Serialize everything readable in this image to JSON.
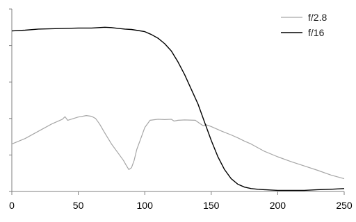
{
  "chart_data": {
    "type": "line",
    "title": "",
    "xlabel": "",
    "ylabel": "",
    "xlim": [
      0,
      250
    ],
    "ylim": [
      0,
      5
    ],
    "x_ticks": [
      0,
      50,
      100,
      150,
      200,
      250
    ],
    "x_tick_labels": [
      "0",
      "50",
      "100",
      "150",
      "200",
      "250"
    ],
    "y_ticks": [
      0,
      1,
      2,
      3,
      4,
      5
    ],
    "y_tick_labels_shown": false,
    "grid": false,
    "legend_position": "top-right",
    "series": [
      {
        "name": "f/2.8",
        "color": "#a6a6a6",
        "x": [
          0,
          10,
          20,
          30,
          38,
          40,
          42,
          50,
          56,
          60,
          63,
          66,
          70,
          75,
          80,
          84,
          86,
          88,
          90,
          92,
          94,
          97,
          100,
          104,
          110,
          115,
          120,
          122,
          125,
          130,
          138,
          142,
          144,
          146,
          150,
          158,
          165,
          170,
          175,
          180,
          185,
          190,
          200,
          210,
          220,
          230,
          240,
          250
        ],
        "y": [
          1.3,
          1.45,
          1.65,
          1.85,
          1.98,
          2.05,
          1.95,
          2.04,
          2.08,
          2.06,
          2.0,
          1.85,
          1.6,
          1.3,
          1.05,
          0.85,
          0.72,
          0.6,
          0.65,
          0.85,
          1.15,
          1.45,
          1.75,
          1.95,
          1.98,
          1.97,
          1.98,
          1.93,
          1.95,
          1.96,
          1.95,
          1.85,
          1.8,
          1.83,
          1.78,
          1.65,
          1.55,
          1.47,
          1.38,
          1.3,
          1.2,
          1.1,
          0.95,
          0.82,
          0.7,
          0.58,
          0.45,
          0.35
        ]
      },
      {
        "name": "f/16",
        "color": "#000000",
        "x": [
          0,
          10,
          20,
          30,
          40,
          50,
          60,
          70,
          75,
          80,
          85,
          90,
          95,
          100,
          105,
          110,
          115,
          120,
          125,
          130,
          135,
          140,
          145,
          150,
          155,
          160,
          165,
          170,
          175,
          180,
          185,
          190,
          195,
          200,
          210,
          220,
          230,
          240,
          250
        ],
        "y": [
          4.4,
          4.42,
          4.45,
          4.46,
          4.47,
          4.48,
          4.48,
          4.5,
          4.49,
          4.47,
          4.45,
          4.44,
          4.41,
          4.38,
          4.3,
          4.2,
          4.05,
          3.85,
          3.55,
          3.2,
          2.8,
          2.4,
          1.9,
          1.4,
          0.95,
          0.6,
          0.35,
          0.2,
          0.12,
          0.08,
          0.06,
          0.05,
          0.04,
          0.03,
          0.03,
          0.03,
          0.05,
          0.06,
          0.08
        ]
      }
    ]
  }
}
